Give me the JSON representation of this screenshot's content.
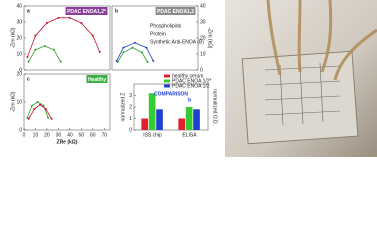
{
  "chart_data": [
    {
      "type": "line",
      "panel": "a",
      "title": "PDAC ENOA1,2*",
      "title_color": "#8a3d9a",
      "ylabel": "-Zim (kΩ)",
      "xlim": [
        0,
        75
      ],
      "ylim": [
        0,
        40
      ],
      "yticks": [
        0,
        10,
        20,
        30,
        40
      ],
      "series": [
        {
          "color": "#c8102e",
          "x": [
            3,
            10,
            20,
            30,
            40,
            50,
            60,
            66
          ],
          "values": [
            8.1,
            21.5,
            29.4,
            32.6,
            32.6,
            29.4,
            21.5,
            11.3
          ]
        },
        {
          "color": "#2ca02c",
          "x": [
            4,
            10,
            18,
            26,
            32
          ],
          "values": [
            5.2,
            12.7,
            15,
            12.7,
            5.2
          ]
        }
      ]
    },
    {
      "type": "line",
      "panel": "b",
      "title": "PDAC ENOA1,2",
      "title_color": "#8c8c8c",
      "ylabel": "-Zim (kΩ)",
      "ytick_side": "right",
      "xlim": [
        0,
        75
      ],
      "ylim": [
        0,
        40
      ],
      "yticks": [
        0,
        10,
        20,
        30,
        40
      ],
      "annotations": [
        "Phospholipids",
        "Protein",
        "Synthetic Anti-ENOA (B)"
      ],
      "series": [
        {
          "color": "#1f3fbf",
          "x": [
            4,
            10,
            20,
            30,
            36
          ],
          "values": [
            5.7,
            14,
            17,
            14,
            5.7
          ]
        },
        {
          "color": "#2ca02c",
          "x": [
            5,
            10,
            18,
            26,
            31
          ],
          "values": [
            5,
            11,
            14,
            11,
            5
          ]
        }
      ]
    },
    {
      "type": "line",
      "panel": "c",
      "title": "Healthy",
      "title_color": "#3cb043",
      "ylabel": "-Zim (kΩ)",
      "xlabel": "ZRe (kΩ)",
      "xlim": [
        0,
        75
      ],
      "ylim": [
        0,
        20
      ],
      "yticks": [
        0,
        10,
        20
      ],
      "xticks": [
        0,
        10,
        20,
        30,
        40,
        50,
        60,
        70
      ],
      "series": [
        {
          "color": "#2ca02c",
          "x": [
            3,
            7,
            12,
            17,
            21
          ],
          "values": [
            4.4,
            8.7,
            10,
            8.7,
            4.4
          ]
        },
        {
          "color": "#c8102e",
          "x": [
            4,
            9,
            14,
            19,
            24
          ],
          "values": [
            4,
            7.5,
            9,
            7.5,
            4
          ]
        }
      ]
    },
    {
      "type": "bar",
      "title": "COMPARISON",
      "ylabel": "normalized Z",
      "y2label": "normalized O.D.",
      "categories": [
        "ISS chip",
        "ELISA"
      ],
      "group_labels": [
        "a",
        "b"
      ],
      "ylim": [
        0,
        4
      ],
      "yticks": [
        0,
        1,
        2,
        3
      ],
      "series": [
        {
          "name": "healthy serum",
          "color": "#e0202a",
          "values": [
            1,
            1
          ]
        },
        {
          "name": "PDAC ENOA 1/2*",
          "color": "#33cc33",
          "values": [
            3.2,
            2
          ]
        },
        {
          "name": "PDAC ENOA 1/2",
          "color": "#2040d0",
          "values": [
            1.8,
            1.8
          ]
        }
      ]
    }
  ]
}
